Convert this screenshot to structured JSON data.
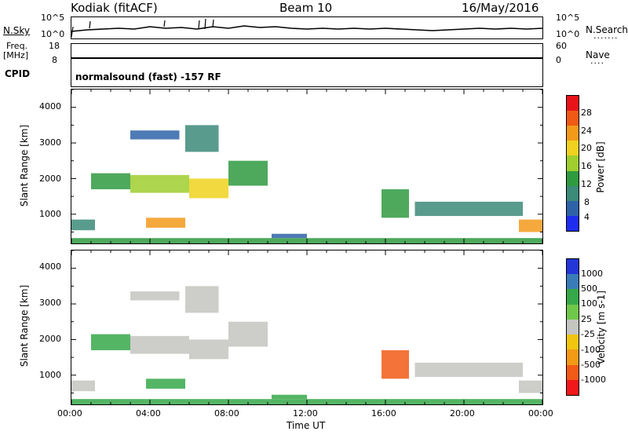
{
  "header": {
    "station": "Kodiak (fitACF)",
    "beam": "Beam 10",
    "date": "16/May/2016"
  },
  "summary": {
    "nsky_label": "N.Sky",
    "nsearch_label": "N.Search",
    "nsky_ticks": [
      "10^5",
      "10^0"
    ],
    "nsearch_ticks": [
      "10^5",
      "10^0"
    ],
    "freq_label_top": "Freq.",
    "freq_label_bottom": "[MHz]",
    "freq_ticks": [
      "18",
      "8"
    ],
    "nave_label": "Nave",
    "nave_ticks": [
      "60",
      "0"
    ],
    "cpid_label": "CPID",
    "cpid_text": "normalsound (fast) -157 RF"
  },
  "x_axis": {
    "label": "Time UT",
    "ticks": [
      "00:00",
      "04:00",
      "08:00",
      "12:00",
      "16:00",
      "20:00",
      "00:00"
    ]
  },
  "colors": {
    "power": [
      "#1e2df0",
      "#2f63a8",
      "#3c8a78",
      "#2f9a3f",
      "#9fce2e",
      "#f0d21e",
      "#f39a1b",
      "#f05a14",
      "#e8131a"
    ],
    "velocity": [
      "#f0181a",
      "#f25a16",
      "#f29a14",
      "#f2c50f",
      "#c4c4c0",
      "#70c84a",
      "#36a84a",
      "#3a7cb8",
      "#2336d8"
    ]
  },
  "chart_data": [
    {
      "type": "heatmap",
      "title": "",
      "xlabel": "",
      "ylabel": "Slant Range [km]",
      "xlim": [
        0,
        24
      ],
      "ylim": [
        180,
        4500
      ],
      "y_ticks": [
        "4000",
        "3000",
        "2000",
        "1000"
      ],
      "colorbar_label": "Power [dB]",
      "colorbar_ticks": [
        "28",
        "24",
        "20",
        "16",
        "12",
        "8",
        "4"
      ],
      "colorbar_range": [
        0,
        30
      ],
      "echo_regions": [
        {
          "t_start": 0.0,
          "t_end": 1.2,
          "range_low": 550,
          "range_high": 850,
          "power": 8
        },
        {
          "t_start": 1.0,
          "t_end": 3.0,
          "range_low": 1700,
          "range_high": 2150,
          "power": 10
        },
        {
          "t_start": 3.0,
          "t_end": 6.0,
          "range_low": 1600,
          "range_high": 2100,
          "power": 16
        },
        {
          "t_start": 6.0,
          "t_end": 8.0,
          "range_low": 1450,
          "range_high": 2000,
          "power": 18
        },
        {
          "t_start": 8.0,
          "t_end": 10.0,
          "range_low": 1800,
          "range_high": 2500,
          "power": 12
        },
        {
          "t_start": 3.8,
          "t_end": 5.8,
          "range_low": 620,
          "range_high": 900,
          "power": 20
        },
        {
          "t_start": 3.0,
          "t_end": 5.5,
          "range_low": 3100,
          "range_high": 3350,
          "power": 6
        },
        {
          "t_start": 5.8,
          "t_end": 7.5,
          "range_low": 2750,
          "range_high": 3500,
          "power": 9
        },
        {
          "t_start": 10.2,
          "t_end": 12.0,
          "range_low": 330,
          "range_high": 450,
          "power": 6
        },
        {
          "t_start": 15.8,
          "t_end": 17.2,
          "range_low": 900,
          "range_high": 1700,
          "power": 12
        },
        {
          "t_start": 17.5,
          "t_end": 23.0,
          "range_low": 950,
          "range_high": 1350,
          "power": 7
        },
        {
          "t_start": 22.8,
          "t_end": 24.0,
          "range_low": 500,
          "range_high": 850,
          "power": 22
        },
        {
          "t_start": 0.0,
          "t_end": 24.0,
          "range_low": 180,
          "range_high": 330,
          "power": 10
        }
      ]
    },
    {
      "type": "heatmap",
      "title": "",
      "xlabel": "Time UT",
      "ylabel": "Slant Range [km]",
      "xlim": [
        0,
        24
      ],
      "ylim": [
        180,
        4500
      ],
      "y_ticks": [
        "4000",
        "3000",
        "2000",
        "1000"
      ],
      "colorbar_label": "Velocity [m s-1]",
      "colorbar_ticks": [
        "1000",
        "500",
        "100",
        "25",
        "-25",
        "-100",
        "-500",
        "-1000"
      ],
      "echo_regions": [
        {
          "t_start": 0.0,
          "t_end": 1.2,
          "range_low": 550,
          "range_high": 850,
          "velocity": 0
        },
        {
          "t_start": 1.0,
          "t_end": 3.0,
          "range_low": 1700,
          "range_high": 2150,
          "velocity": 150
        },
        {
          "t_start": 3.0,
          "t_end": 6.0,
          "range_low": 1600,
          "range_high": 2100,
          "velocity": 0
        },
        {
          "t_start": 6.0,
          "t_end": 8.0,
          "range_low": 1450,
          "range_high": 2000,
          "velocity": 0
        },
        {
          "t_start": 8.0,
          "t_end": 10.0,
          "range_low": 1800,
          "range_high": 2500,
          "velocity": 0
        },
        {
          "t_start": 3.8,
          "t_end": 5.8,
          "range_low": 620,
          "range_high": 900,
          "velocity": 200
        },
        {
          "t_start": 3.0,
          "t_end": 5.5,
          "range_low": 3100,
          "range_high": 3350,
          "velocity": 0
        },
        {
          "t_start": 5.8,
          "t_end": 7.5,
          "range_low": 2750,
          "range_high": 3500,
          "velocity": 0
        },
        {
          "t_start": 10.2,
          "t_end": 12.0,
          "range_low": 330,
          "range_high": 450,
          "velocity": 200
        },
        {
          "t_start": 15.8,
          "t_end": 17.2,
          "range_low": 900,
          "range_high": 1700,
          "velocity": -300
        },
        {
          "t_start": 17.5,
          "t_end": 23.0,
          "range_low": 950,
          "range_high": 1350,
          "velocity": 0
        },
        {
          "t_start": 22.8,
          "t_end": 24.0,
          "range_low": 500,
          "range_high": 850,
          "velocity": 0
        },
        {
          "t_start": 0.0,
          "t_end": 24.0,
          "range_low": 180,
          "range_high": 330,
          "velocity": 150
        }
      ]
    }
  ]
}
